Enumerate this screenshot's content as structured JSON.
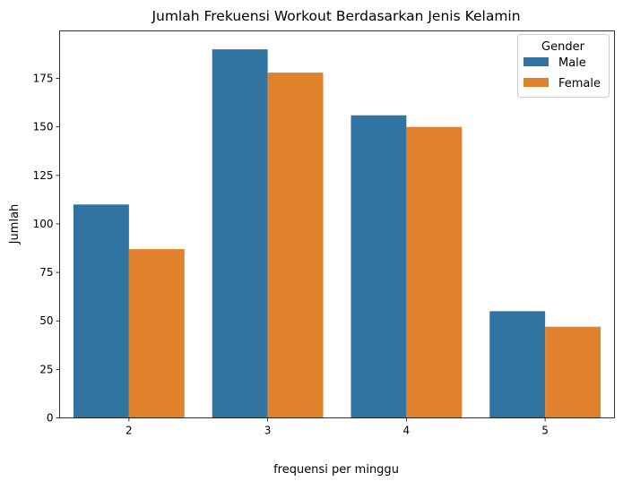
{
  "chart_data": {
    "type": "bar",
    "title": "Jumlah Frekuensi Workout Berdasarkan Jenis Kelamin",
    "xlabel": "frequensi per minggu",
    "ylabel": "Jumlah",
    "categories": [
      "2",
      "3",
      "4",
      "5"
    ],
    "series": [
      {
        "name": "Male",
        "color": "#3274a1",
        "values": [
          110,
          190,
          156,
          55
        ]
      },
      {
        "name": "Female",
        "color": "#e1812c",
        "values": [
          87,
          178,
          150,
          47
        ]
      }
    ],
    "yticks": [
      0,
      25,
      50,
      75,
      100,
      125,
      150,
      175
    ],
    "ylim": [
      0,
      199.5
    ],
    "legend": {
      "title": "Gender",
      "position": "top-right"
    },
    "grid": false
  }
}
